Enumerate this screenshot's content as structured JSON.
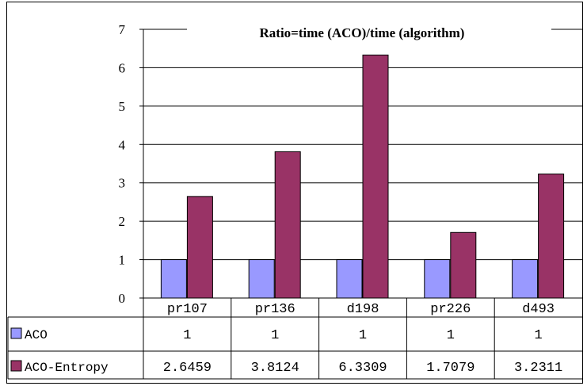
{
  "chart_data": {
    "type": "bar",
    "title": "Ratio=time (ACO)/time (algorithm)",
    "categories": [
      "pr107",
      "pr136",
      "d198",
      "pr226",
      "d493"
    ],
    "series": [
      {
        "name": "ACO",
        "color": "#9999ff",
        "values": [
          1,
          1,
          1,
          1,
          1
        ],
        "labels": [
          "1",
          "1",
          "1",
          "1",
          "1"
        ]
      },
      {
        "name": "ACO-Entropy",
        "color": "#993366",
        "values": [
          2.6459,
          3.8124,
          6.3309,
          1.7079,
          3.2311
        ],
        "labels": [
          "2.6459",
          "3.8124",
          "6.3309",
          "1.7079",
          "3.2311"
        ]
      }
    ],
    "ylim": [
      0,
      7
    ],
    "yticks": [
      "0",
      "1",
      "2",
      "3",
      "4",
      "5",
      "6",
      "7"
    ],
    "grid": true,
    "legend": "data-table"
  }
}
